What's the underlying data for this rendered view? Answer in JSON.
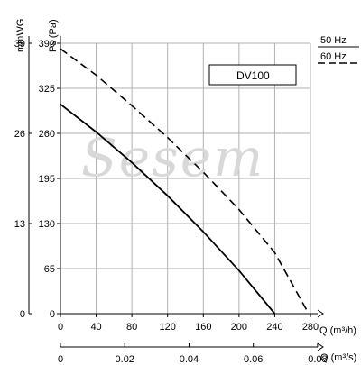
{
  "chart_data": {
    "type": "line",
    "title": "",
    "model_label": "DV100",
    "watermark": "Sesem",
    "y_axis_left": {
      "label": "mmWG",
      "ticks": [
        "0",
        "13",
        "26",
        "39"
      ],
      "range": [
        0,
        39
      ]
    },
    "y_axis_right": {
      "label": "Ps (Pa)",
      "ticks": [
        "0",
        "65",
        "130",
        "195",
        "260",
        "325",
        "390"
      ],
      "range": [
        0,
        390
      ]
    },
    "x_axis_top": {
      "label": "Q (m³/h)",
      "ticks": [
        "0",
        "40",
        "80",
        "120",
        "160",
        "200",
        "240",
        "280"
      ],
      "range": [
        0,
        280
      ]
    },
    "x_axis_bottom": {
      "label": "Q (m³/s)",
      "ticks": [
        "0",
        "0.02",
        "0.04",
        "0.06",
        "0.08"
      ]
    },
    "grid": true,
    "legend_position": "top-right",
    "series": [
      {
        "name": "50 Hz",
        "style": "solid",
        "color": "#000000",
        "x": [
          0,
          40,
          80,
          120,
          160,
          200,
          240
        ],
        "y": [
          302,
          262,
          218,
          170,
          118,
          62,
          0
        ]
      },
      {
        "name": "60 Hz",
        "style": "dashed",
        "color": "#000000",
        "x": [
          0,
          40,
          80,
          120,
          160,
          200,
          240,
          278
        ],
        "y": [
          382,
          344,
          300,
          254,
          204,
          150,
          88,
          0
        ]
      }
    ]
  }
}
